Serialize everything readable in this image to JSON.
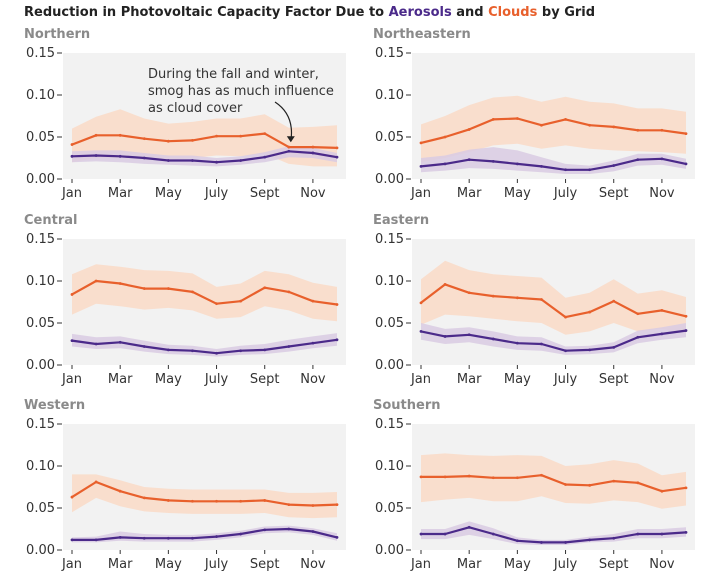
{
  "title": {
    "prefix": "Reduction in Photovoltaic Capacity Factor Due to",
    "aerosols": "Aerosols",
    "and": "and",
    "clouds": "Clouds",
    "suffix": "by Grid"
  },
  "colors": {
    "aerosols": "#4b2a8a",
    "aerosols_band": "#d9cbe3",
    "clouds": "#e8602c",
    "clouds_band": "#fadac7",
    "panel_bg": "#f2f2f2"
  },
  "chart_data": [
    {
      "type": "line",
      "title": "Northern",
      "categories": [
        "Jan",
        "Feb",
        "Mar",
        "Apr",
        "May",
        "Jun",
        "Jul",
        "Aug",
        "Sept",
        "Oct",
        "Nov",
        "Dec"
      ],
      "x_tick_labels": [
        "Jan",
        "Mar",
        "May",
        "July",
        "Sept",
        "Nov"
      ],
      "y_tick_labels": [
        "0.00",
        "0.05",
        "0.10",
        "0.15"
      ],
      "ylim": [
        0,
        0.15
      ],
      "series": [
        {
          "name": "Clouds",
          "values": [
            0.041,
            0.052,
            0.052,
            0.048,
            0.045,
            0.046,
            0.051,
            0.051,
            0.054,
            0.038,
            0.038,
            0.037
          ],
          "low": [
            0.02,
            0.025,
            0.025,
            0.023,
            0.022,
            0.025,
            0.028,
            0.027,
            0.03,
            0.018,
            0.015,
            0.015
          ],
          "high": [
            0.06,
            0.074,
            0.083,
            0.072,
            0.066,
            0.068,
            0.072,
            0.072,
            0.077,
            0.061,
            0.062,
            0.064
          ]
        },
        {
          "name": "Aerosols",
          "values": [
            0.027,
            0.028,
            0.027,
            0.025,
            0.022,
            0.022,
            0.02,
            0.022,
            0.026,
            0.033,
            0.031,
            0.026
          ],
          "low": [
            0.02,
            0.021,
            0.02,
            0.018,
            0.017,
            0.016,
            0.015,
            0.017,
            0.02,
            0.026,
            0.025,
            0.02
          ],
          "high": [
            0.033,
            0.034,
            0.034,
            0.031,
            0.028,
            0.028,
            0.025,
            0.027,
            0.032,
            0.039,
            0.037,
            0.031
          ]
        }
      ],
      "annotation": [
        "During the fall and winter,",
        "smog has as much influence",
        "as cloud cover"
      ]
    },
    {
      "type": "line",
      "title": "Northeastern",
      "categories": [
        "Jan",
        "Feb",
        "Mar",
        "Apr",
        "May",
        "Jun",
        "Jul",
        "Aug",
        "Sept",
        "Oct",
        "Nov",
        "Dec"
      ],
      "x_tick_labels": [
        "Jan",
        "Mar",
        "May",
        "July",
        "Sept",
        "Nov"
      ],
      "y_tick_labels": [
        "0.00",
        "0.05",
        "0.10",
        "0.15"
      ],
      "ylim": [
        0,
        0.15
      ],
      "series": [
        {
          "name": "Clouds",
          "values": [
            0.043,
            0.05,
            0.059,
            0.071,
            0.072,
            0.064,
            0.071,
            0.064,
            0.062,
            0.058,
            0.058,
            0.054
          ],
          "low": [
            0.02,
            0.025,
            0.032,
            0.04,
            0.042,
            0.036,
            0.04,
            0.036,
            0.034,
            0.033,
            0.032,
            0.03
          ],
          "high": [
            0.065,
            0.075,
            0.088,
            0.097,
            0.099,
            0.092,
            0.098,
            0.092,
            0.09,
            0.084,
            0.084,
            0.08
          ]
        },
        {
          "name": "Aerosols",
          "values": [
            0.015,
            0.018,
            0.023,
            0.021,
            0.018,
            0.015,
            0.011,
            0.011,
            0.016,
            0.023,
            0.024,
            0.018
          ],
          "low": [
            0.008,
            0.01,
            0.013,
            0.012,
            0.01,
            0.008,
            0.006,
            0.006,
            0.009,
            0.016,
            0.017,
            0.012
          ],
          "high": [
            0.025,
            0.028,
            0.035,
            0.038,
            0.034,
            0.026,
            0.018,
            0.016,
            0.022,
            0.03,
            0.03,
            0.024
          ]
        }
      ]
    },
    {
      "type": "line",
      "title": "Central",
      "categories": [
        "Jan",
        "Feb",
        "Mar",
        "Apr",
        "May",
        "Jun",
        "Jul",
        "Aug",
        "Sept",
        "Oct",
        "Nov",
        "Dec"
      ],
      "x_tick_labels": [
        "Jan",
        "Mar",
        "May",
        "July",
        "Sept",
        "Nov"
      ],
      "y_tick_labels": [
        "0.00",
        "0.05",
        "0.10",
        "0.15"
      ],
      "ylim": [
        0,
        0.15
      ],
      "series": [
        {
          "name": "Clouds",
          "values": [
            0.084,
            0.1,
            0.097,
            0.091,
            0.091,
            0.087,
            0.073,
            0.076,
            0.092,
            0.087,
            0.076,
            0.072
          ],
          "low": [
            0.06,
            0.073,
            0.07,
            0.066,
            0.068,
            0.065,
            0.055,
            0.057,
            0.07,
            0.065,
            0.055,
            0.052
          ],
          "high": [
            0.108,
            0.12,
            0.117,
            0.113,
            0.112,
            0.109,
            0.093,
            0.097,
            0.112,
            0.108,
            0.098,
            0.093
          ]
        },
        {
          "name": "Aerosols",
          "values": [
            0.029,
            0.025,
            0.027,
            0.022,
            0.018,
            0.017,
            0.014,
            0.017,
            0.018,
            0.022,
            0.026,
            0.03
          ],
          "low": [
            0.022,
            0.019,
            0.02,
            0.016,
            0.013,
            0.012,
            0.01,
            0.012,
            0.013,
            0.016,
            0.02,
            0.023
          ],
          "high": [
            0.037,
            0.033,
            0.034,
            0.029,
            0.024,
            0.023,
            0.019,
            0.023,
            0.025,
            0.03,
            0.034,
            0.038
          ]
        }
      ]
    },
    {
      "type": "line",
      "title": "Eastern",
      "categories": [
        "Jan",
        "Feb",
        "Mar",
        "Apr",
        "May",
        "Jun",
        "Jul",
        "Aug",
        "Sept",
        "Oct",
        "Nov",
        "Dec"
      ],
      "x_tick_labels": [
        "Jan",
        "Mar",
        "May",
        "July",
        "Sept",
        "Nov"
      ],
      "y_tick_labels": [
        "0.00",
        "0.05",
        "0.10",
        "0.15"
      ],
      "ylim": [
        0,
        0.15
      ],
      "series": [
        {
          "name": "Clouds",
          "values": [
            0.074,
            0.096,
            0.086,
            0.082,
            0.08,
            0.078,
            0.057,
            0.063,
            0.076,
            0.061,
            0.065,
            0.058
          ],
          "low": [
            0.048,
            0.06,
            0.058,
            0.055,
            0.052,
            0.05,
            0.036,
            0.04,
            0.05,
            0.04,
            0.043,
            0.038
          ],
          "high": [
            0.102,
            0.124,
            0.113,
            0.108,
            0.106,
            0.104,
            0.08,
            0.086,
            0.102,
            0.085,
            0.089,
            0.081
          ]
        },
        {
          "name": "Aerosols",
          "values": [
            0.04,
            0.034,
            0.036,
            0.031,
            0.026,
            0.025,
            0.017,
            0.018,
            0.021,
            0.033,
            0.037,
            0.041
          ],
          "low": [
            0.03,
            0.025,
            0.027,
            0.022,
            0.018,
            0.017,
            0.012,
            0.013,
            0.015,
            0.026,
            0.03,
            0.033
          ],
          "high": [
            0.05,
            0.043,
            0.045,
            0.04,
            0.034,
            0.033,
            0.022,
            0.023,
            0.027,
            0.041,
            0.045,
            0.05
          ]
        }
      ]
    },
    {
      "type": "line",
      "title": "Western",
      "categories": [
        "Jan",
        "Feb",
        "Mar",
        "Apr",
        "May",
        "Jun",
        "Jul",
        "Aug",
        "Sept",
        "Oct",
        "Nov",
        "Dec"
      ],
      "x_tick_labels": [
        "Jan",
        "Mar",
        "May",
        "July",
        "Sept",
        "Nov"
      ],
      "y_tick_labels": [
        "0.00",
        "0.05",
        "0.10",
        "0.15"
      ],
      "ylim": [
        0,
        0.15
      ],
      "series": [
        {
          "name": "Clouds",
          "values": [
            0.063,
            0.081,
            0.07,
            0.062,
            0.059,
            0.058,
            0.058,
            0.058,
            0.059,
            0.054,
            0.053,
            0.054
          ],
          "low": [
            0.045,
            0.062,
            0.052,
            0.046,
            0.044,
            0.043,
            0.043,
            0.043,
            0.044,
            0.039,
            0.038,
            0.039
          ],
          "high": [
            0.09,
            0.09,
            0.083,
            0.075,
            0.073,
            0.072,
            0.072,
            0.072,
            0.072,
            0.068,
            0.068,
            0.069
          ]
        },
        {
          "name": "Aerosols",
          "values": [
            0.012,
            0.012,
            0.015,
            0.014,
            0.014,
            0.014,
            0.016,
            0.019,
            0.024,
            0.025,
            0.022,
            0.015
          ],
          "low": [
            0.009,
            0.009,
            0.011,
            0.01,
            0.01,
            0.01,
            0.012,
            0.015,
            0.02,
            0.021,
            0.018,
            0.011
          ],
          "high": [
            0.015,
            0.016,
            0.022,
            0.019,
            0.018,
            0.018,
            0.02,
            0.023,
            0.028,
            0.029,
            0.026,
            0.02
          ]
        }
      ]
    },
    {
      "type": "line",
      "title": "Southern",
      "categories": [
        "Jan",
        "Feb",
        "Mar",
        "Apr",
        "May",
        "Jun",
        "Jul",
        "Aug",
        "Sept",
        "Oct",
        "Nov",
        "Dec"
      ],
      "x_tick_labels": [
        "Jan",
        "Mar",
        "May",
        "July",
        "Sept",
        "Nov"
      ],
      "y_tick_labels": [
        "0.00",
        "0.05",
        "0.10",
        "0.15"
      ],
      "ylim": [
        0,
        0.15
      ],
      "series": [
        {
          "name": "Clouds",
          "values": [
            0.087,
            0.087,
            0.088,
            0.086,
            0.086,
            0.089,
            0.078,
            0.077,
            0.082,
            0.08,
            0.07,
            0.074
          ],
          "low": [
            0.057,
            0.06,
            0.062,
            0.058,
            0.058,
            0.064,
            0.056,
            0.055,
            0.059,
            0.057,
            0.049,
            0.053
          ],
          "high": [
            0.113,
            0.115,
            0.113,
            0.112,
            0.113,
            0.112,
            0.1,
            0.102,
            0.107,
            0.103,
            0.089,
            0.093
          ]
        },
        {
          "name": "Aerosols",
          "values": [
            0.019,
            0.019,
            0.027,
            0.019,
            0.011,
            0.009,
            0.009,
            0.012,
            0.014,
            0.019,
            0.019,
            0.021
          ],
          "low": [
            0.013,
            0.013,
            0.018,
            0.013,
            0.007,
            0.006,
            0.006,
            0.009,
            0.01,
            0.014,
            0.014,
            0.016
          ],
          "high": [
            0.025,
            0.025,
            0.034,
            0.026,
            0.015,
            0.012,
            0.012,
            0.016,
            0.019,
            0.025,
            0.025,
            0.027
          ]
        }
      ]
    }
  ]
}
